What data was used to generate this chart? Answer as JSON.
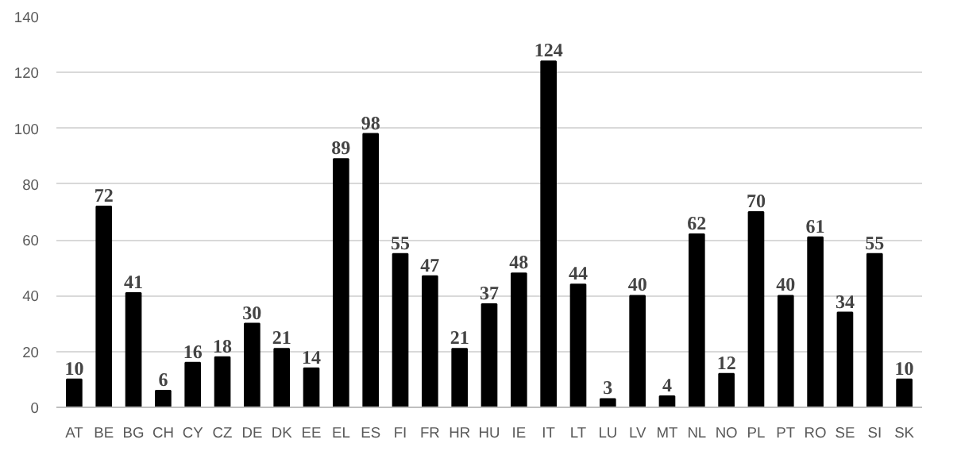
{
  "chart_data": {
    "type": "bar",
    "categories": [
      "AT",
      "BE",
      "BG",
      "CH",
      "CY",
      "CZ",
      "DE",
      "DK",
      "EE",
      "EL",
      "ES",
      "FI",
      "FR",
      "HR",
      "HU",
      "IE",
      "IT",
      "LT",
      "LU",
      "LV",
      "MT",
      "NL",
      "NO",
      "PL",
      "PT",
      "RO",
      "SE",
      "SI",
      "SK"
    ],
    "values": [
      10,
      72,
      41,
      6,
      16,
      18,
      30,
      21,
      14,
      89,
      98,
      55,
      47,
      21,
      37,
      48,
      124,
      44,
      3,
      40,
      4,
      62,
      12,
      70,
      40,
      61,
      34,
      55,
      10
    ],
    "color": "#000000",
    "ylim": [
      0,
      140
    ],
    "yticks": [
      0,
      20,
      40,
      60,
      80,
      100,
      120,
      140
    ],
    "grid": "y",
    "data_labels": true
  }
}
